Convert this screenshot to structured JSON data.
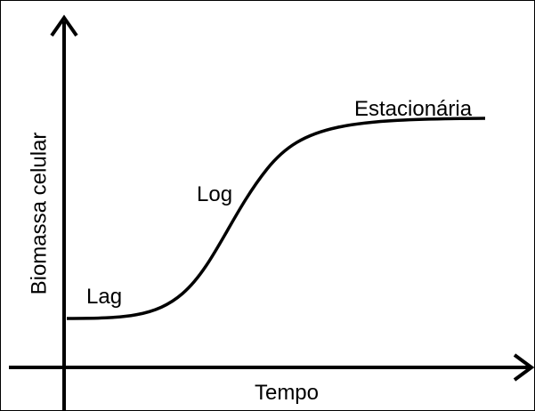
{
  "axes": {
    "y_label": "Biomassa celular",
    "x_label": "Tempo"
  },
  "phases": [
    {
      "label": "Lag"
    },
    {
      "label": "Log"
    },
    {
      "label": "Estacionária"
    }
  ]
}
